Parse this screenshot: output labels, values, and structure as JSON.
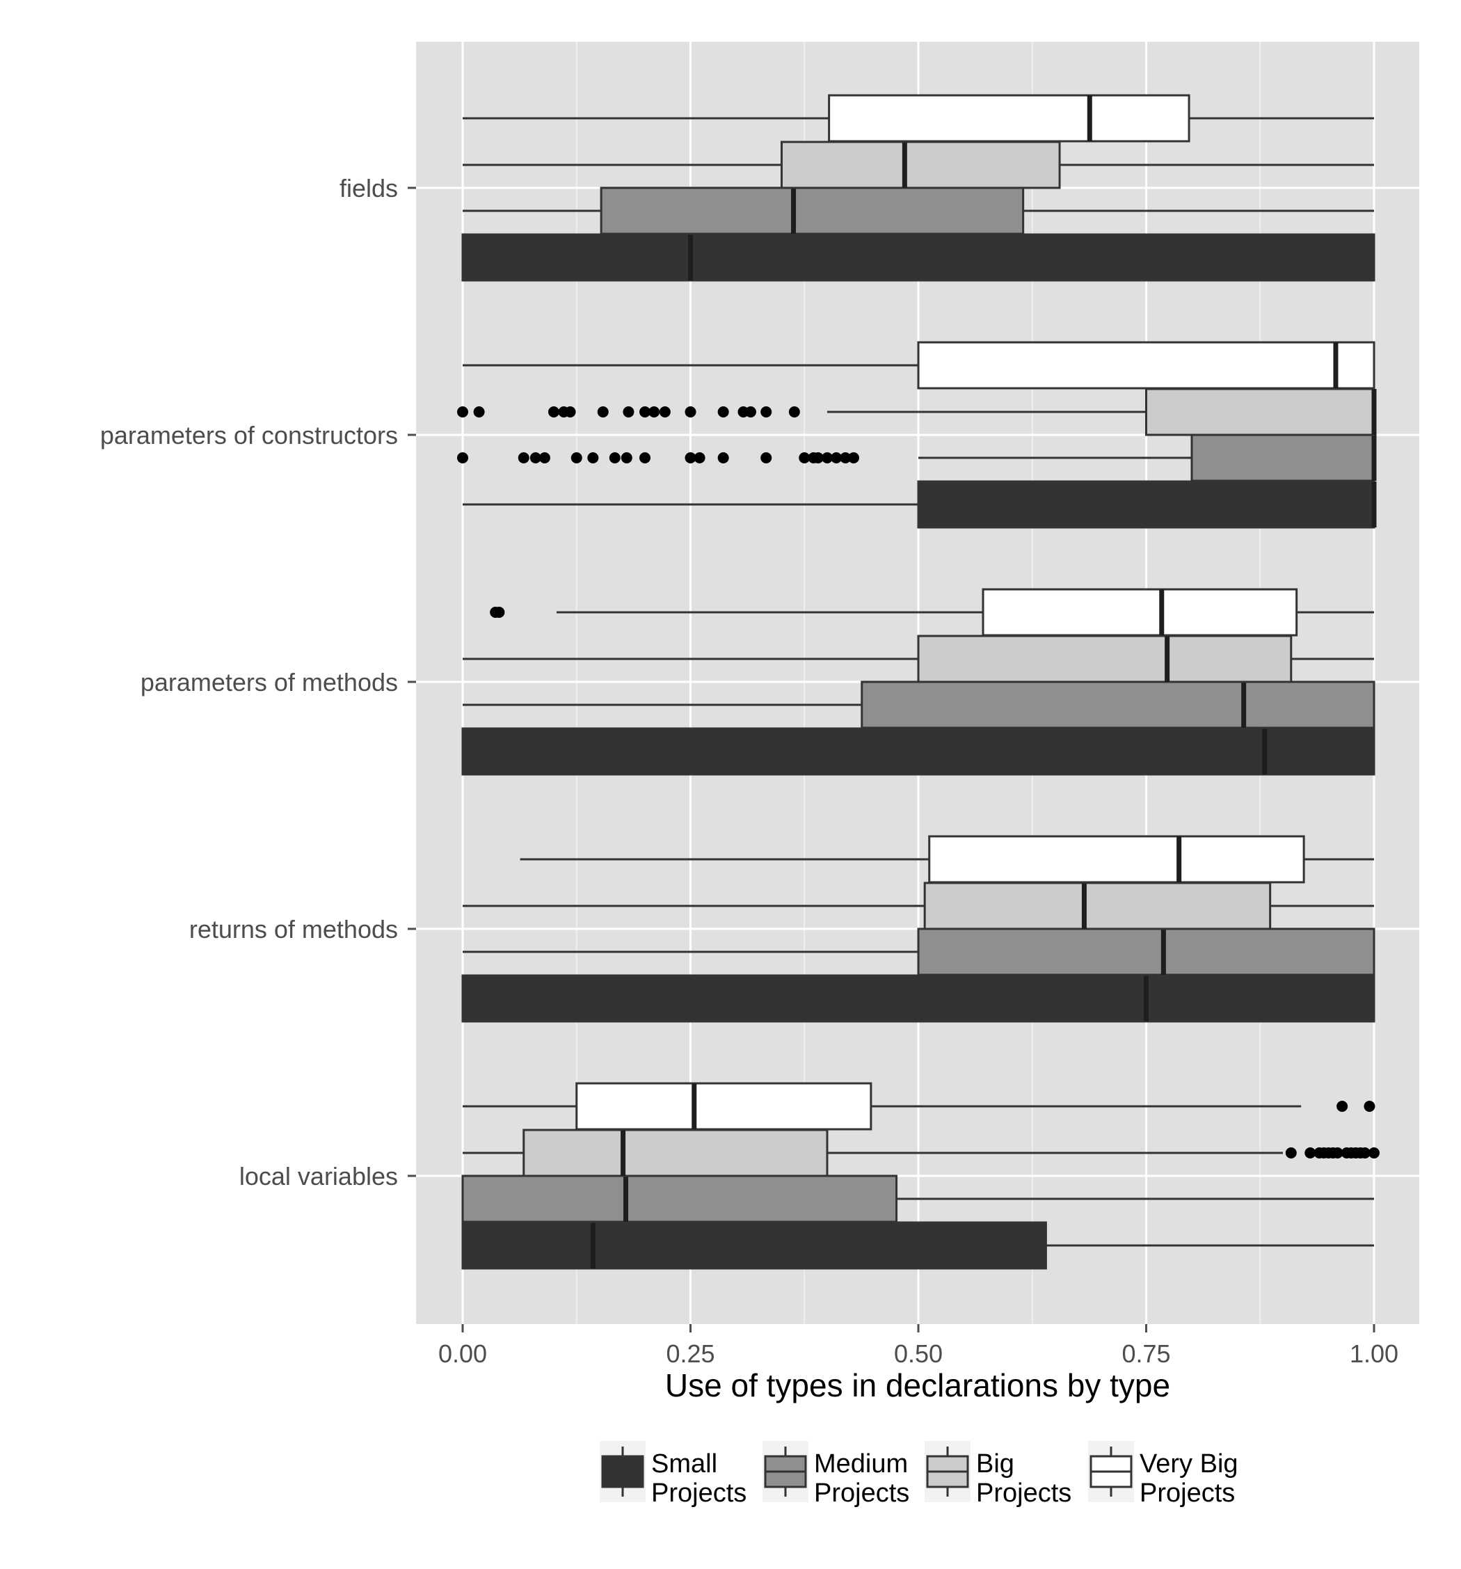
{
  "chart_data": {
    "type": "boxplot",
    "orientation": "horizontal",
    "xlabel": "Use of types in declarations by type",
    "ylabel": "",
    "xlim": [
      -0.05,
      1.05
    ],
    "x_ticks": [
      "0.00",
      "0.25",
      "0.50",
      "0.75",
      "1.00"
    ],
    "grid": true,
    "legend_position": "bottom",
    "categories": [
      "fields",
      "parameters of constructors",
      "parameters of methods",
      "returns of methods",
      "local variables"
    ],
    "series": [
      {
        "name_lines": [
          "Small",
          "Projects"
        ],
        "color": "#333333",
        "boxes": [
          {
            "category": "fields",
            "whisker_low": 0.0,
            "q1": 0.0,
            "median": 0.25,
            "q3": 1.0,
            "whisker_high": 1.0,
            "outliers": []
          },
          {
            "category": "parameters of constructors",
            "whisker_low": 0.0,
            "q1": 0.5,
            "median": 1.0,
            "q3": 1.0,
            "whisker_high": 1.0,
            "outliers": []
          },
          {
            "category": "parameters of methods",
            "whisker_low": 0.0,
            "q1": 0.0,
            "median": 0.88,
            "q3": 1.0,
            "whisker_high": 1.0,
            "outliers": []
          },
          {
            "category": "returns of methods",
            "whisker_low": 0.0,
            "q1": 0.0,
            "median": 0.75,
            "q3": 1.0,
            "whisker_high": 1.0,
            "outliers": []
          },
          {
            "category": "local variables",
            "whisker_low": 0.0,
            "q1": 0.0,
            "median": 0.143,
            "q3": 0.64,
            "whisker_high": 1.0,
            "outliers": []
          }
        ]
      },
      {
        "name_lines": [
          "Medium",
          "Projects"
        ],
        "color": "#8f8f8f",
        "boxes": [
          {
            "category": "fields",
            "whisker_low": 0.0,
            "q1": 0.152,
            "median": 0.363,
            "q3": 0.615,
            "whisker_high": 1.0,
            "outliers": []
          },
          {
            "category": "parameters of constructors",
            "whisker_low": 0.5,
            "q1": 0.8,
            "median": 1.0,
            "q3": 1.0,
            "whisker_high": 1.0,
            "outliers": [
              0.0,
              0.067,
              0.08,
              0.09,
              0.125,
              0.143,
              0.167,
              0.18,
              0.2,
              0.25,
              0.26,
              0.286,
              0.333,
              0.375,
              0.385,
              0.39,
              0.4,
              0.41,
              0.42,
              0.429
            ]
          },
          {
            "category": "parameters of methods",
            "whisker_low": 0.0,
            "q1": 0.438,
            "median": 0.857,
            "q3": 1.0,
            "whisker_high": 1.0,
            "outliers": []
          },
          {
            "category": "returns of methods",
            "whisker_low": 0.0,
            "q1": 0.5,
            "median": 0.769,
            "q3": 1.0,
            "whisker_high": 1.0,
            "outliers": []
          },
          {
            "category": "local variables",
            "whisker_low": 0.0,
            "q1": 0.0,
            "median": 0.179,
            "q3": 0.476,
            "whisker_high": 1.0,
            "outliers": []
          }
        ]
      },
      {
        "name_lines": [
          "Big",
          "Projects"
        ],
        "color": "#cccccc",
        "boxes": [
          {
            "category": "fields",
            "whisker_low": 0.0,
            "q1": 0.35,
            "median": 0.485,
            "q3": 0.655,
            "whisker_high": 1.0,
            "outliers": []
          },
          {
            "category": "parameters of constructors",
            "whisker_low": 0.4,
            "q1": 0.75,
            "median": 1.0,
            "q3": 1.0,
            "whisker_high": 1.0,
            "outliers": [
              0.0,
              0.018,
              0.1,
              0.111,
              0.118,
              0.154,
              0.182,
              0.2,
              0.21,
              0.222,
              0.25,
              0.286,
              0.308,
              0.316,
              0.333,
              0.364
            ]
          },
          {
            "category": "parameters of methods",
            "whisker_low": 0.0,
            "q1": 0.5,
            "median": 0.773,
            "q3": 0.909,
            "whisker_high": 1.0,
            "outliers": []
          },
          {
            "category": "returns of methods",
            "whisker_low": 0.0,
            "q1": 0.507,
            "median": 0.682,
            "q3": 0.886,
            "whisker_high": 1.0,
            "outliers": []
          },
          {
            "category": "local variables",
            "whisker_low": 0.0,
            "q1": 0.067,
            "median": 0.176,
            "q3": 0.4,
            "whisker_high": 0.9,
            "outliers": [
              0.909,
              0.93,
              0.94,
              0.945,
              0.95,
              0.955,
              0.96,
              0.97,
              0.975,
              0.98,
              0.985,
              0.99,
              1.0
            ]
          }
        ]
      },
      {
        "name_lines": [
          "Very Big",
          "Projects"
        ],
        "color": "#ffffff",
        "boxes": [
          {
            "category": "fields",
            "whisker_low": 0.0,
            "q1": 0.402,
            "median": 0.688,
            "q3": 0.797,
            "whisker_high": 1.0,
            "outliers": []
          },
          {
            "category": "parameters of constructors",
            "whisker_low": 0.0,
            "q1": 0.5,
            "median": 0.958,
            "q3": 1.0,
            "whisker_high": 1.0,
            "outliers": []
          },
          {
            "category": "parameters of methods",
            "whisker_low": 0.103,
            "q1": 0.571,
            "median": 0.767,
            "q3": 0.915,
            "whisker_high": 1.0,
            "outliers": [
              0.036,
              0.04
            ]
          },
          {
            "category": "returns of methods",
            "whisker_low": 0.063,
            "q1": 0.512,
            "median": 0.786,
            "q3": 0.923,
            "whisker_high": 1.0,
            "outliers": []
          },
          {
            "category": "local variables",
            "whisker_low": 0.0,
            "q1": 0.125,
            "median": 0.254,
            "q3": 0.448,
            "whisker_high": 0.92,
            "outliers": [
              0.965,
              0.995
            ]
          }
        ]
      }
    ]
  }
}
